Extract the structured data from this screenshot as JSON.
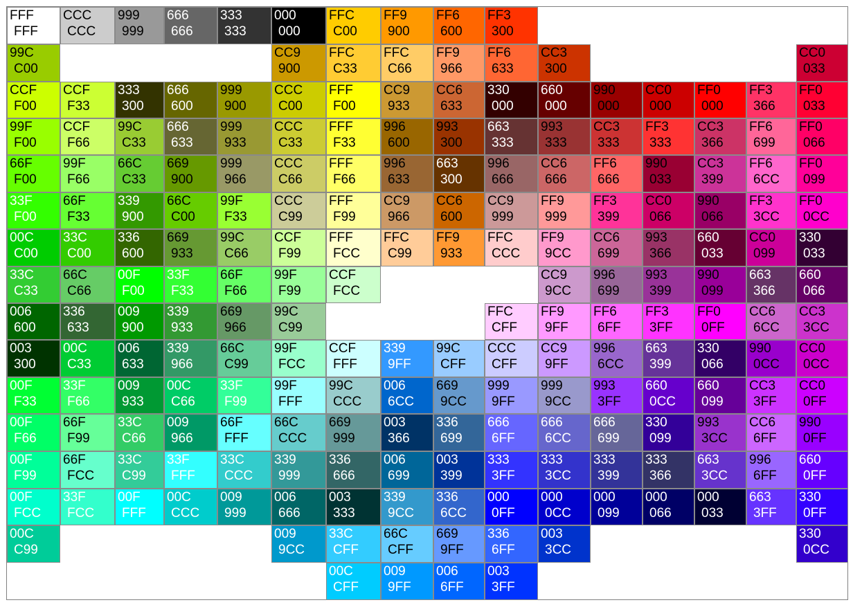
{
  "rows": [
    [
      [
        "FFF",
        "FFF"
      ],
      [
        "CCC",
        "CCC"
      ],
      [
        "999",
        "999"
      ],
      [
        "666",
        "666"
      ],
      [
        "333",
        "333"
      ],
      [
        "000",
        "000"
      ],
      [
        "FFC",
        "C00"
      ],
      [
        "FF9",
        "900"
      ],
      [
        "FF6",
        "600"
      ],
      [
        "FF3",
        "300"
      ],
      null,
      null,
      null,
      null,
      null,
      null
    ],
    [
      [
        "99C",
        "C00"
      ],
      null,
      null,
      null,
      null,
      [
        "CC9",
        "900"
      ],
      [
        "FFC",
        "C33"
      ],
      [
        "FFC",
        "C66"
      ],
      [
        "FF9",
        "966"
      ],
      [
        "FF6",
        "633"
      ],
      [
        "CC3",
        "300"
      ],
      null,
      null,
      null,
      null,
      [
        "CC0",
        "033"
      ]
    ],
    [
      [
        "CCF",
        "F00"
      ],
      [
        "CCF",
        "F33"
      ],
      [
        "333",
        "300"
      ],
      [
        "666",
        "600"
      ],
      [
        "999",
        "900"
      ],
      [
        "CCC",
        "C00"
      ],
      [
        "FFF",
        "F00"
      ],
      [
        "CC9",
        "933"
      ],
      [
        "CC6",
        "633"
      ],
      [
        "330",
        "000"
      ],
      [
        "660",
        "000"
      ],
      [
        "990",
        "000"
      ],
      [
        "CC0",
        "000"
      ],
      [
        "FF0",
        "000"
      ],
      [
        "FF3",
        "366"
      ],
      [
        "FF0",
        "033"
      ]
    ],
    [
      [
        "99F",
        "F00"
      ],
      [
        "CCF",
        "F66"
      ],
      [
        "99C",
        "C33"
      ],
      [
        "666",
        "633"
      ],
      [
        "999",
        "933"
      ],
      [
        "CCC",
        "C33"
      ],
      [
        "FFF",
        "F33"
      ],
      [
        "996",
        "600"
      ],
      [
        "993",
        "300"
      ],
      [
        "663",
        "333"
      ],
      [
        "993",
        "333"
      ],
      [
        "CC3",
        "333"
      ],
      [
        "FF3",
        "333"
      ],
      [
        "CC3",
        "366"
      ],
      [
        "FF6",
        "699"
      ],
      [
        "FF0",
        "066"
      ]
    ],
    [
      [
        "66F",
        "F00"
      ],
      [
        "99F",
        "F66"
      ],
      [
        "66C",
        "C33"
      ],
      [
        "669",
        "900"
      ],
      [
        "999",
        "966"
      ],
      [
        "CCC",
        "C66"
      ],
      [
        "FFF",
        "F66"
      ],
      [
        "996",
        "633"
      ],
      [
        "663",
        "300"
      ],
      [
        "996",
        "666"
      ],
      [
        "CC6",
        "666"
      ],
      [
        "FF6",
        "666"
      ],
      [
        "990",
        "033"
      ],
      [
        "CC3",
        "399"
      ],
      [
        "FF6",
        "6CC"
      ],
      [
        "FF0",
        "099"
      ]
    ],
    [
      [
        "33F",
        "F00"
      ],
      [
        "66F",
        "F33"
      ],
      [
        "339",
        "900"
      ],
      [
        "66C",
        "C00"
      ],
      [
        "99F",
        "F33"
      ],
      [
        "CCC",
        "C99"
      ],
      [
        "FFF",
        "F99"
      ],
      [
        "CC9",
        "966"
      ],
      [
        "CC6",
        "600"
      ],
      [
        "CC9",
        "999"
      ],
      [
        "FF9",
        "999"
      ],
      [
        "FF3",
        "399"
      ],
      [
        "CC0",
        "066"
      ],
      [
        "990",
        "066"
      ],
      [
        "FF3",
        "3CC"
      ],
      [
        "FF0",
        "0CC"
      ]
    ],
    [
      [
        "00C",
        "C00"
      ],
      [
        "33C",
        "C00"
      ],
      [
        "336",
        "600"
      ],
      [
        "669",
        "933"
      ],
      [
        "99C",
        "C66"
      ],
      [
        "CCF",
        "F99"
      ],
      [
        "FFF",
        "FCC"
      ],
      [
        "FFC",
        "C99"
      ],
      [
        "FF9",
        "933"
      ],
      [
        "FFC",
        "CCC"
      ],
      [
        "FF9",
        "9CC"
      ],
      [
        "CC6",
        "699"
      ],
      [
        "993",
        "366"
      ],
      [
        "660",
        "033"
      ],
      [
        "CC0",
        "099"
      ],
      [
        "330",
        "033"
      ]
    ],
    [
      [
        "33C",
        "C33"
      ],
      [
        "66C",
        "C66"
      ],
      [
        "00F",
        "F00"
      ],
      [
        "33F",
        "F33"
      ],
      [
        "66F",
        "F66"
      ],
      [
        "99F",
        "F99"
      ],
      [
        "CCF",
        "FCC"
      ],
      null,
      null,
      null,
      [
        "CC9",
        "9CC"
      ],
      [
        "996",
        "699"
      ],
      [
        "993",
        "399"
      ],
      [
        "990",
        "099"
      ],
      [
        "663",
        "366"
      ],
      [
        "660",
        "066"
      ]
    ],
    [
      [
        "006",
        "600"
      ],
      [
        "336",
        "633"
      ],
      [
        "009",
        "900"
      ],
      [
        "339",
        "933"
      ],
      [
        "669",
        "966"
      ],
      [
        "99C",
        "C99"
      ],
      null,
      null,
      null,
      [
        "FFC",
        "CFF"
      ],
      [
        "FF9",
        "9FF"
      ],
      [
        "FF6",
        "6FF"
      ],
      [
        "FF3",
        "3FF"
      ],
      [
        "FF0",
        "0FF"
      ],
      [
        "CC6",
        "6CC"
      ],
      [
        "CC3",
        "3CC"
      ]
    ],
    [
      [
        "003",
        "300"
      ],
      [
        "00C",
        "C33"
      ],
      [
        "006",
        "633"
      ],
      [
        "339",
        "966"
      ],
      [
        "66C",
        "C99"
      ],
      [
        "99F",
        "FCC"
      ],
      [
        "CCF",
        "FFF"
      ],
      [
        "339",
        "9FF"
      ],
      [
        "99C",
        "CFF"
      ],
      [
        "CCC",
        "CFF"
      ],
      [
        "CC9",
        "9FF"
      ],
      [
        "996",
        "6CC"
      ],
      [
        "663",
        "399"
      ],
      [
        "330",
        "066"
      ],
      [
        "990",
        "0CC"
      ],
      [
        "CC0",
        "0CC"
      ]
    ],
    [
      [
        "00F",
        "F33"
      ],
      [
        "33F",
        "F66"
      ],
      [
        "009",
        "933"
      ],
      [
        "00C",
        "C66"
      ],
      [
        "33F",
        "F99"
      ],
      [
        "99F",
        "FFF"
      ],
      [
        "99C",
        "CCC"
      ],
      [
        "006",
        "6CC"
      ],
      [
        "669",
        "9CC"
      ],
      [
        "999",
        "9FF"
      ],
      [
        "999",
        "9CC"
      ],
      [
        "993",
        "3FF"
      ],
      [
        "660",
        "0CC"
      ],
      [
        "660",
        "099"
      ],
      [
        "CC3",
        "3FF"
      ],
      [
        "CC0",
        "0FF"
      ]
    ],
    [
      [
        "00F",
        "F66"
      ],
      [
        "66F",
        "F99"
      ],
      [
        "33C",
        "C66"
      ],
      [
        "009",
        "966"
      ],
      [
        "66F",
        "FFF"
      ],
      [
        "66C",
        "CCC"
      ],
      [
        "669",
        "999"
      ],
      [
        "003",
        "366"
      ],
      [
        "336",
        "699"
      ],
      [
        "666",
        "6FF"
      ],
      [
        "666",
        "6CC"
      ],
      [
        "666",
        "699"
      ],
      [
        "330",
        "099"
      ],
      [
        "993",
        "3CC"
      ],
      [
        "CC6",
        "6FF"
      ],
      [
        "990",
        "0FF"
      ]
    ],
    [
      [
        "00F",
        "F99"
      ],
      [
        "66F",
        "FCC"
      ],
      [
        "33C",
        "C99"
      ],
      [
        "33F",
        "FFF"
      ],
      [
        "33C",
        "CCC"
      ],
      [
        "339",
        "999"
      ],
      [
        "336",
        "666"
      ],
      [
        "006",
        "699"
      ],
      [
        "003",
        "399"
      ],
      [
        "333",
        "3FF"
      ],
      [
        "333",
        "3CC"
      ],
      [
        "333",
        "399"
      ],
      [
        "333",
        "366"
      ],
      [
        "663",
        "3CC"
      ],
      [
        "996",
        "6FF"
      ],
      [
        "660",
        "0FF"
      ]
    ],
    [
      [
        "00F",
        "FCC"
      ],
      [
        "33F",
        "FCC"
      ],
      [
        "00F",
        "FFF"
      ],
      [
        "00C",
        "CCC"
      ],
      [
        "009",
        "999"
      ],
      [
        "006",
        "666"
      ],
      [
        "003",
        "333"
      ],
      [
        "339",
        "9CC"
      ],
      [
        "336",
        "6CC"
      ],
      [
        "000",
        "0FF"
      ],
      [
        "000",
        "0CC"
      ],
      [
        "000",
        "099"
      ],
      [
        "000",
        "066"
      ],
      [
        "000",
        "033"
      ],
      [
        "663",
        "3FF"
      ],
      [
        "330",
        "0FF"
      ]
    ],
    [
      [
        "00C",
        "C99"
      ],
      null,
      null,
      null,
      null,
      [
        "009",
        "9CC"
      ],
      [
        "33C",
        "CFF"
      ],
      [
        "66C",
        "CFF"
      ],
      [
        "669",
        "9FF"
      ],
      [
        "336",
        "6FF"
      ],
      [
        "003",
        "3CC"
      ],
      null,
      null,
      null,
      null,
      [
        "330",
        "0CC"
      ]
    ],
    [
      null,
      null,
      null,
      null,
      null,
      null,
      [
        "00C",
        "CFF"
      ],
      [
        "009",
        "9FF"
      ],
      [
        "006",
        "6FF"
      ],
      [
        "003",
        "3FF"
      ],
      null,
      null,
      null,
      null,
      null,
      null
    ]
  ]
}
